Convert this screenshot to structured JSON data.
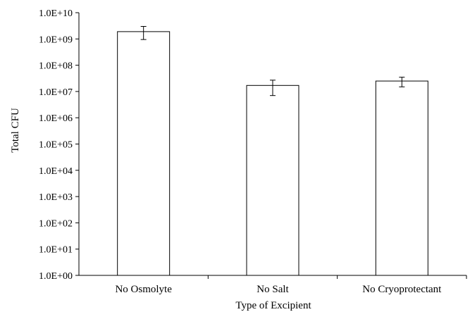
{
  "chart_data": {
    "type": "bar",
    "title": "",
    "xlabel": "Type of Excipient",
    "ylabel": "Total CFU",
    "yscale": "log10",
    "ylim": [
      1,
      10000000000
    ],
    "grid": false,
    "legend": "none",
    "categories": [
      "No Osmolyte",
      "No Salt",
      "No Cryoprotectant"
    ],
    "series": [
      {
        "values": [
          1900000000,
          17000000,
          25000000
        ],
        "error_low": [
          950000000,
          7000000,
          15000000
        ],
        "error_high": [
          3000000000,
          27000000,
          35000000
        ]
      }
    ],
    "y_ticks": [
      {
        "value": 1,
        "label": "1.0E+00"
      },
      {
        "value": 10,
        "label": "1.0E+01"
      },
      {
        "value": 100,
        "label": "1.0E+02"
      },
      {
        "value": 1000,
        "label": "1.0E+03"
      },
      {
        "value": 10000,
        "label": "1.0E+04"
      },
      {
        "value": 100000,
        "label": "1.0E+05"
      },
      {
        "value": 1000000,
        "label": "1.0E+06"
      },
      {
        "value": 10000000,
        "label": "1.0E+07"
      },
      {
        "value": 100000000,
        "label": "1.0E+08"
      },
      {
        "value": 1000000000,
        "label": "1.0E+09"
      },
      {
        "value": 10000000000,
        "label": "1.0E+10"
      }
    ],
    "colors": {
      "bar_fill": "#ffffff",
      "bar_stroke": "#000000",
      "axis": "#000000"
    }
  }
}
